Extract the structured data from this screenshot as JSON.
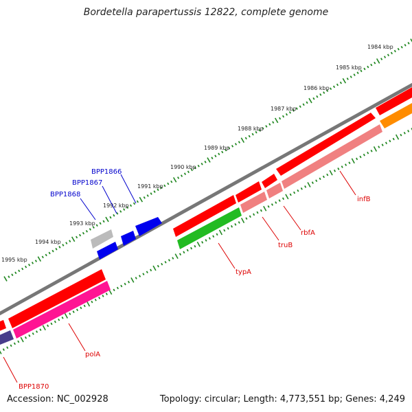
{
  "title": "Bordetella parapertussis 12822, complete genome",
  "footer": {
    "accession": "Accession: NC_002928",
    "topology": "Topology: circular; Length: 4,773,551 bp; Genes: 4,249"
  },
  "ticks": [
    "1984 kbp",
    "1985 kbp",
    "1986 kbp",
    "1987 kbp",
    "1988 kbp",
    "1989 kbp",
    "1990 kbp",
    "1991 kbp",
    "1992 kbp",
    "1993 kbp",
    "1994 kbp",
    "1995 kbp"
  ],
  "colors": {
    "backbone": "#777777",
    "red_gene": "#ff0000",
    "salmon_gene": "#f08080",
    "pink_gene": "#ff1493",
    "green_gene": "#22bb22",
    "blue_gene": "#0000ee",
    "grey_gene": "#bbbbbb",
    "purple_gene": "#483d8b",
    "orange_gene": "#ff8c00",
    "tick": "#228822",
    "label_red": "#dd0000",
    "label_blue": "#0000cc"
  },
  "genes": [
    {
      "label": "BPP1866",
      "color": "blue"
    },
    {
      "label": "BPP1867",
      "color": "blue"
    },
    {
      "label": "BPP1868",
      "color": "blue"
    },
    {
      "label": "infB",
      "color": "red"
    },
    {
      "label": "rbfA",
      "color": "red"
    },
    {
      "label": "truB",
      "color": "red"
    },
    {
      "label": "typA",
      "color": "red"
    },
    {
      "label": "polA",
      "color": "red"
    },
    {
      "label": "BPP1870",
      "color": "red"
    }
  ]
}
